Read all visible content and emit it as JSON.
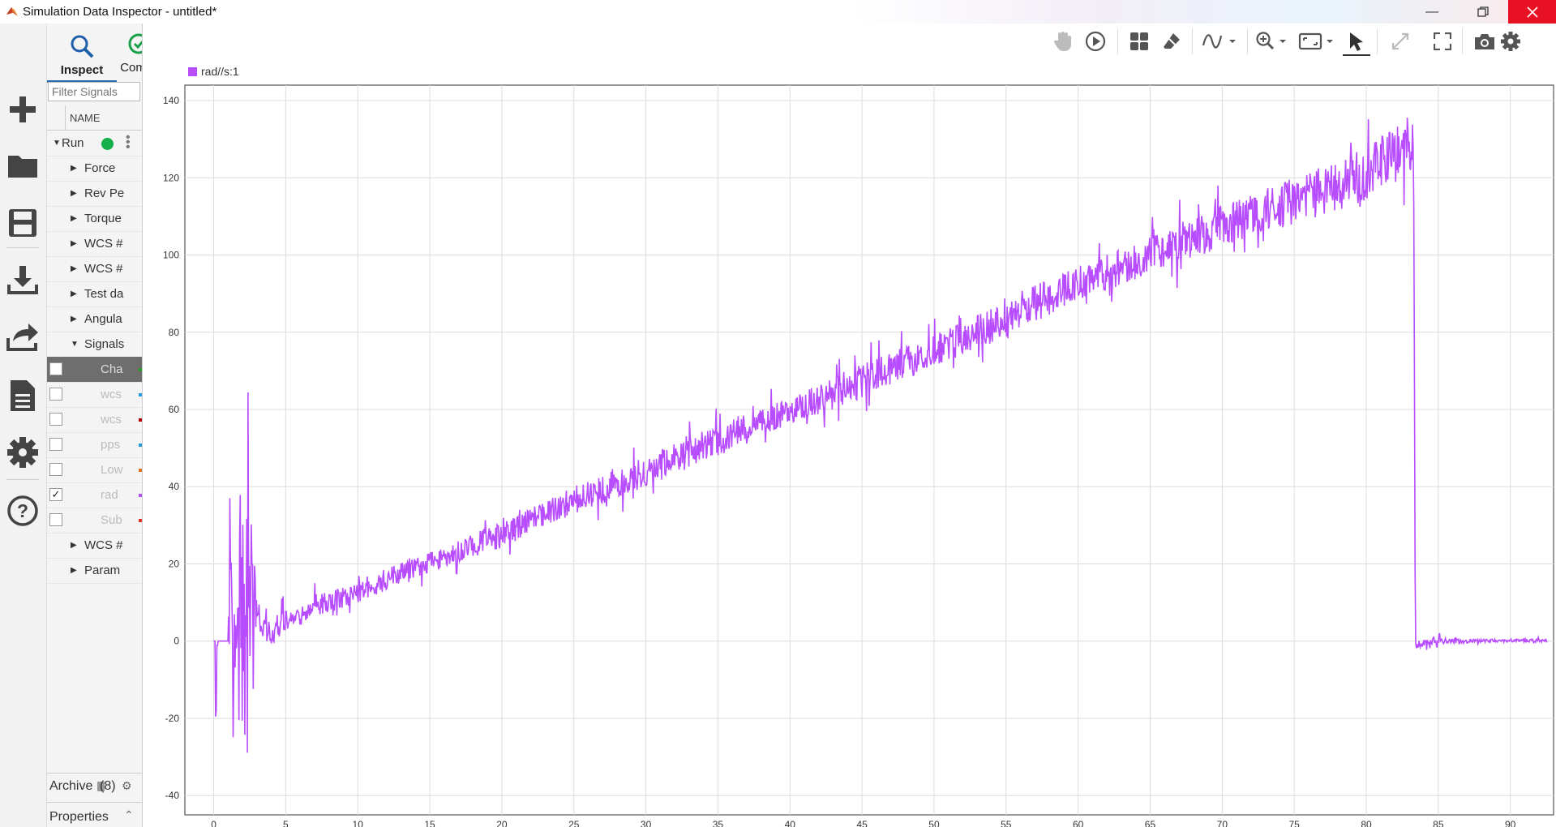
{
  "window": {
    "title": "Simulation Data Inspector - untitled*"
  },
  "left_toolbar": {
    "icons": [
      "plus-icon",
      "folder-icon",
      "save-icon",
      "download-icon",
      "share-icon",
      "document-icon",
      "gear-icon",
      "help-icon"
    ]
  },
  "panel": {
    "tabs": [
      {
        "label": "Inspect",
        "icon": "search-icon"
      },
      {
        "label": "Com",
        "icon": "compare-icon"
      }
    ],
    "filter_placeholder": "Filter Signals",
    "column_header": "NAME",
    "run_label": "Run",
    "groups": [
      "Force",
      "Rev Pe",
      "Torque",
      "WCS #",
      "WCS #",
      "Test da",
      "Angula",
      "Signals"
    ],
    "signals": [
      {
        "label": "Cha",
        "checked": false,
        "color": "#2aa02a",
        "selected": true
      },
      {
        "label": "wcs",
        "checked": false,
        "color": "#1f9be0",
        "selected": false
      },
      {
        "label": "wcs",
        "checked": false,
        "color": "#b00000",
        "selected": false
      },
      {
        "label": "pps",
        "checked": false,
        "color": "#1f9be0",
        "selected": false
      },
      {
        "label": "Low",
        "checked": false,
        "color": "#e07020",
        "selected": false
      },
      {
        "label": "rad",
        "checked": true,
        "color": "#b84cff",
        "selected": false
      },
      {
        "label": "Sub",
        "checked": false,
        "color": "#e03020",
        "selected": false
      }
    ],
    "groups_after": [
      "WCS #",
      "Param"
    ],
    "archive_label": "Archive",
    "archive_count": "(8)",
    "properties_label": "Properties"
  },
  "toolbar_icons": [
    "pan-icon",
    "play-icon",
    "layout-icon",
    "eraser-icon",
    "signal-icon",
    "zoom-icon",
    "fit-icon",
    "cursor-icon",
    "expand-icon",
    "fullscreen-icon",
    "camera-icon",
    "settings-icon"
  ],
  "chart_data": {
    "type": "line",
    "legend": "rad//s:1",
    "series_color": "#b84cff",
    "xlim": [
      -2,
      93
    ],
    "ylim": [
      -45,
      144
    ],
    "x_ticks": [
      0,
      5,
      10,
      15,
      20,
      25,
      30,
      35,
      40,
      45,
      50,
      55,
      60,
      65,
      70,
      75,
      80,
      85,
      90
    ],
    "y_ticks": [
      -40,
      -20,
      0,
      20,
      40,
      60,
      80,
      100,
      120,
      140
    ],
    "x_tick_labels": [
      "0",
      "5",
      "10",
      "15",
      "20",
      "25",
      "30",
      "35",
      "40",
      "45",
      "50",
      "55",
      "60",
      "65",
      "70",
      "75",
      "80",
      "85",
      "90"
    ],
    "y_tick_labels": [
      "-40",
      "-20",
      "0",
      "20",
      "40",
      "60",
      "80",
      "100",
      "120",
      "140"
    ],
    "grid": true,
    "series": [
      {
        "name": "rad//s:1",
        "envelope_x": [
          0.0,
          0.1,
          0.1,
          0.2,
          0.3,
          0.5,
          1.0,
          1.1,
          1.6,
          2.0,
          2.3,
          2.5,
          3.0,
          3.5,
          4.0,
          5.0,
          7.0,
          10.0,
          15.0,
          20.0,
          25.0,
          30.0,
          35.0,
          40.0,
          45.0,
          50.0,
          55.0,
          60.0,
          65.0,
          70.0,
          75.0,
          80.0,
          83.3,
          83.4,
          85.0,
          88.0,
          90.0,
          92.6
        ],
        "envelope_hi": [
          0,
          0,
          36,
          20,
          0,
          0,
          0,
          29,
          28,
          45,
          40,
          38,
          12,
          5,
          7,
          8,
          12,
          16,
          23,
          31,
          40,
          48,
          56,
          63,
          72,
          79,
          89,
          97,
          105,
          113,
          120,
          128,
          137,
          0,
          1,
          0.5,
          0.5,
          0.5
        ],
        "envelope_lo": [
          0,
          0,
          -32,
          -16,
          0,
          0,
          0,
          -25,
          -26,
          -42,
          -30,
          -31,
          4,
          0,
          -1,
          2,
          6,
          10,
          18,
          24,
          33,
          40,
          48,
          56,
          63,
          71,
          79,
          88,
          95,
          102,
          108,
          114,
          122,
          -2,
          -1,
          -0.3,
          -0.3,
          -0.3
        ]
      }
    ]
  }
}
